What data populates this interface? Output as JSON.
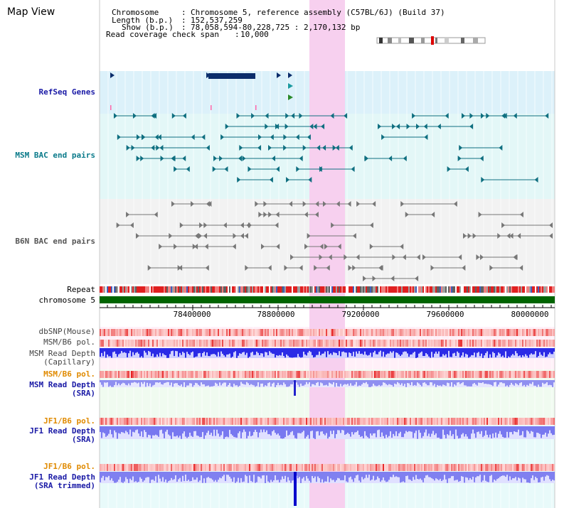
{
  "view_title": "Map View",
  "info": {
    "chromosome_label": "Chromosome",
    "chromosome_value": "Chromosome 5, reference assembly (C57BL/6J) (Build 37)",
    "length_label": "Length (b.p.)",
    "length_value": "152,537,259",
    "show_label": "Show (b.p.)",
    "show_value": "78,058,594-80,228,725 : 2,170,132 bp",
    "coverage_label": "Read coverage check span",
    "coverage_value": "10,000"
  },
  "tracks": {
    "refseq": "RefSeq Genes",
    "msm_bac": "MSM BAC end pairs",
    "b6n_bac": "B6N BAC end pairs",
    "repeat": "Repeat",
    "chromosome": "chromosome 5",
    "dbsnp": "dbSNP(Mouse)",
    "msm_b6_pol_1": "MSM/B6 pol.",
    "msm_read_depth_cap": "MSM Read Depth\n(Capillary)",
    "msm_b6_pol_2": "MSM/B6 pol.",
    "msm_read_depth_sra": "MSM Read Depth\n(SRA)",
    "jf1_b6_pol_1": "JF1/B6 pol.",
    "jf1_read_depth_sra": "JF1 Read Depth\n(SRA)",
    "jf1_b6_pol_2": "JF1/B6 pol.",
    "jf1_read_depth_trimmed": "JF1 Read Depth\n(SRA trimmed)"
  },
  "axis_ticks": [
    "78400000",
    "78800000",
    "79200000",
    "79600000",
    "80000000"
  ],
  "colors": {
    "label_blue": "#1a1aa6",
    "label_teal": "#0a7a8a",
    "label_gray": "#555555",
    "label_orange": "#e08a00",
    "highlight": "#f7d0ef",
    "chromosome_bar": "#006400",
    "gene": "#0b2d6b"
  }
}
